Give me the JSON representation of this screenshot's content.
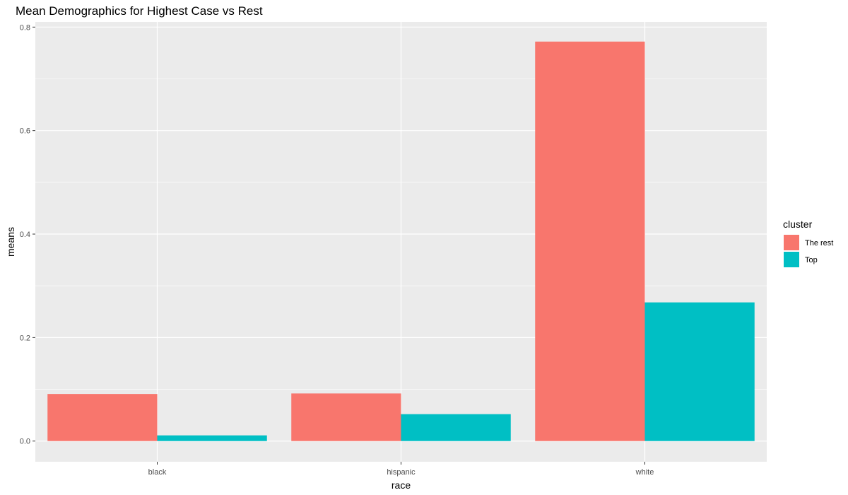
{
  "chart_data": {
    "type": "bar",
    "title": "Mean Demographics for Highest Case vs Rest",
    "xlabel": "race",
    "ylabel": "means",
    "categories": [
      "black",
      "hispanic",
      "white"
    ],
    "series": [
      {
        "name": "The rest",
        "color": "#F8766D",
        "values": [
          0.091,
          0.092,
          0.772
        ]
      },
      {
        "name": "Top",
        "color": "#00BFC4",
        "values": [
          0.011,
          0.052,
          0.268
        ]
      }
    ],
    "ylim": [
      -0.04,
      0.81
    ],
    "yticks": [
      0.0,
      0.2,
      0.4,
      0.6,
      0.8
    ],
    "ytick_labels": [
      "0.0",
      "0.2",
      "0.4",
      "0.6",
      "0.8"
    ],
    "grid": true,
    "legend": {
      "title": "cluster",
      "placement": "right"
    },
    "panel_color": "#EBEBEB"
  }
}
